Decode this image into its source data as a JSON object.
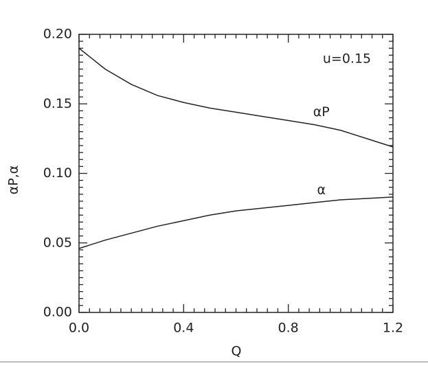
{
  "chart_data": {
    "type": "line",
    "annotation": "u=0.15",
    "x_label": "Q",
    "y_label": "αP,α",
    "x": [
      0,
      0.1,
      0.2,
      0.3,
      0.4,
      0.5,
      0.6,
      0.7,
      0.8,
      0.9,
      1.0,
      1.1,
      1.2
    ],
    "series": [
      {
        "name": "αP",
        "color": "#222222",
        "values": [
          0.19,
          0.175,
          0.164,
          0.156,
          0.151,
          0.147,
          0.144,
          0.141,
          0.138,
          0.135,
          0.131,
          0.125,
          0.119
        ]
      },
      {
        "name": "α",
        "color": "#222222",
        "values": [
          0.046,
          0.052,
          0.057,
          0.062,
          0.066,
          0.07,
          0.073,
          0.075,
          0.077,
          0.079,
          0.081,
          0.082,
          0.083
        ]
      }
    ],
    "xlim": [
      0,
      1.2
    ],
    "ylim": [
      0,
      0.2
    ],
    "xticks": [
      {
        "value": 0,
        "label": "0.0"
      },
      0.4,
      0.8,
      1.2
    ],
    "yticks": [
      {
        "value": 0,
        "label": "0.00"
      },
      0.05,
      {
        "value": 0.1,
        "label": "0.10"
      },
      0.15,
      {
        "value": 0.2,
        "label": "0.20"
      }
    ]
  }
}
